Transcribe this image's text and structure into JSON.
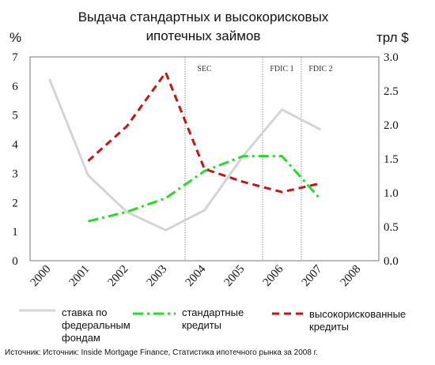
{
  "header": {
    "title_line1": "Выдача стандартных и высокорисковых",
    "title_line2": "ипотечных займов",
    "unit_left": "%",
    "unit_right": "трл $"
  },
  "chart_data": {
    "type": "line",
    "title": "Выдача стандартных и высокорисковых ипотечных займов",
    "x_ticks": [
      "2000",
      "2001",
      "2002",
      "2003",
      "2004",
      "2005",
      "2006",
      "2007",
      "2008"
    ],
    "xlim": [
      2000,
      2008
    ],
    "y_left": {
      "label": "%",
      "ylim": [
        0,
        7
      ],
      "ticks": [
        "0",
        "1",
        "2",
        "3",
        "4",
        "5",
        "6",
        "7"
      ]
    },
    "y_right": {
      "label": "трл $",
      "ylim": [
        0.0,
        3.0
      ],
      "ticks": [
        "0.0",
        "0.5",
        "1.0",
        "1.5",
        "2.0",
        "2.5",
        "3.0"
      ]
    },
    "grid": false,
    "annotations": [
      {
        "x": 2004.0,
        "text": "SEC"
      },
      {
        "x": 2006.0,
        "text": "FDIC 1"
      },
      {
        "x": 2007.0,
        "text": "FDIC 2"
      }
    ],
    "series": [
      {
        "name": "ставка по федеральным фондам",
        "axis": "left",
        "color": "#d4d4d4",
        "style": "solid",
        "x": [
          2000.0,
          2001.0,
          2002.0,
          2003.0,
          2004.0,
          2005.0,
          2006.0,
          2007.0
        ],
        "y": [
          6.24,
          2.93,
          1.67,
          1.05,
          1.73,
          3.6,
          5.19,
          4.5
        ]
      },
      {
        "name": "стандартные кредиты",
        "axis": "right",
        "color": "#22dd22",
        "style": "dashdot",
        "x": [
          2001.0,
          2002.0,
          2003.0,
          2004.0,
          2005.0,
          2006.0,
          2007.0
        ],
        "y": [
          0.58,
          0.72,
          0.92,
          1.32,
          1.54,
          1.54,
          0.9
        ]
      },
      {
        "name": "высокорискованные кредиты",
        "axis": "right",
        "color": "#cc1111",
        "style": "dashed",
        "x": [
          2001.0,
          2002.0,
          2003.0,
          2004.0,
          2005.0,
          2006.0,
          2007.0
        ],
        "y": [
          1.47,
          1.98,
          2.77,
          1.35,
          1.16,
          1.01,
          1.14
        ]
      }
    ]
  },
  "legend": {
    "items": [
      {
        "label_line1": "ставка по",
        "label_line2": "федеральным",
        "label_line3": "фондам",
        "color": "#d4d4d4",
        "style": "solid"
      },
      {
        "label_line1": "стандартные",
        "label_line2": "кредиты",
        "color": "#22dd22",
        "style": "dashdot"
      },
      {
        "label_line1": "высокорискованные",
        "label_line2": "кредиты",
        "color": "#cc1111",
        "style": "dashed"
      }
    ]
  },
  "footer": {
    "source": "Источник: Источник: Inside Mortgage Finance, Статистика ипотечного рынка за 2008 г."
  }
}
